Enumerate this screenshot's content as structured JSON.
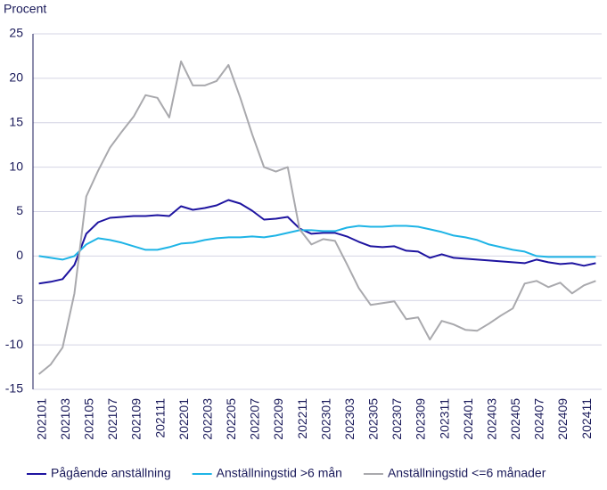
{
  "chart_data": {
    "type": "line",
    "y_label": "Procent",
    "categories": [
      "202101",
      null,
      "202103",
      null,
      "202105",
      null,
      "202107",
      null,
      "202109",
      null,
      "202111",
      null,
      "202201",
      null,
      "202203",
      null,
      "202205",
      null,
      "202207",
      null,
      "202209",
      null,
      "202211",
      null,
      "202301",
      null,
      "202303",
      null,
      "202305",
      null,
      "202307",
      null,
      "202309",
      null,
      "202311",
      null,
      "202401",
      null,
      "202403",
      null,
      "202405",
      null,
      "202407",
      null,
      "202409",
      null,
      "202411",
      null
    ],
    "series": [
      {
        "name": "Pågående anställning",
        "color": "#1e14a0",
        "values": [
          -3.1,
          -2.9,
          -2.6,
          -1.0,
          2.5,
          3.8,
          4.3,
          4.4,
          4.5,
          4.5,
          4.6,
          4.5,
          5.6,
          5.2,
          5.4,
          5.7,
          6.3,
          5.9,
          5.1,
          4.1,
          4.2,
          4.4,
          3.1,
          2.5,
          2.6,
          2.6,
          2.2,
          1.6,
          1.1,
          1.0,
          1.1,
          0.6,
          0.5,
          -0.2,
          0.2,
          -0.2,
          -0.3,
          -0.4,
          -0.5,
          -0.6,
          -0.7,
          -0.8,
          -0.4,
          -0.7,
          -0.9,
          -0.8,
          -1.1,
          -0.8
        ]
      },
      {
        "name": "Anställningstid >6 mån",
        "color": "#1eb4e6",
        "values": [
          0.0,
          -0.2,
          -0.4,
          0.0,
          1.3,
          2.0,
          1.8,
          1.5,
          1.1,
          0.7,
          0.7,
          1.0,
          1.4,
          1.5,
          1.8,
          2.0,
          2.1,
          2.1,
          2.2,
          2.1,
          2.3,
          2.6,
          2.9,
          2.9,
          2.8,
          2.8,
          3.2,
          3.4,
          3.3,
          3.3,
          3.4,
          3.4,
          3.3,
          3.0,
          2.7,
          2.3,
          2.1,
          1.8,
          1.3,
          1.0,
          0.7,
          0.5,
          0.0,
          -0.1,
          -0.1,
          -0.1,
          -0.1,
          -0.1
        ]
      },
      {
        "name": "Anställningstid <=6 månader",
        "color": "#a9a9ad",
        "values": [
          -13.3,
          -12.2,
          -10.3,
          -4.2,
          6.7,
          9.6,
          12.2,
          14.0,
          15.7,
          18.1,
          17.8,
          15.6,
          21.9,
          19.2,
          19.2,
          19.7,
          21.5,
          17.8,
          13.7,
          10.0,
          9.5,
          10.0,
          3.0,
          1.3,
          1.9,
          1.7,
          -0.9,
          -3.6,
          -5.5,
          -5.3,
          -5.1,
          -7.1,
          -6.9,
          -9.4,
          -7.3,
          -7.7,
          -8.3,
          -8.4,
          -7.6,
          -6.7,
          -5.9,
          -3.1,
          -2.8,
          -3.5,
          -3.0,
          -4.2,
          -3.3,
          -2.8
        ]
      }
    ],
    "ylim": [
      -15,
      25
    ],
    "yticks": [
      -15,
      -10,
      -5,
      0,
      5,
      10,
      15,
      20,
      25
    ],
    "grid": true,
    "legend": "bottom"
  }
}
